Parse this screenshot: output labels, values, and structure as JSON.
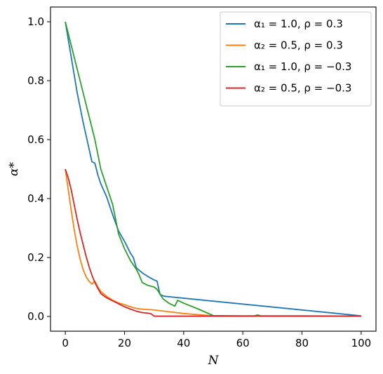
{
  "chart_data": {
    "type": "line",
    "title": "",
    "xlabel": "N",
    "ylabel": "α*",
    "xlim": [
      -5,
      105
    ],
    "ylim": [
      -0.05,
      1.05
    ],
    "xticks": [
      0,
      20,
      40,
      60,
      80,
      100
    ],
    "xtick_labels": [
      "0",
      "20",
      "40",
      "60",
      "80",
      "100"
    ],
    "yticks": [
      0.0,
      0.2,
      0.4,
      0.6,
      0.8,
      1.0
    ],
    "ytick_labels": [
      "0.0",
      "0.2",
      "0.4",
      "0.6",
      "0.8",
      "1.0"
    ],
    "grid": false,
    "legend_position": "top-right",
    "series": [
      {
        "name": "α₁ = 1.0, ρ = 0.3",
        "color": "#1f77b4",
        "x": [
          0,
          2,
          4,
          6,
          8,
          9,
          10,
          11,
          12,
          14,
          16,
          18,
          20,
          22,
          23,
          24,
          26,
          28,
          30,
          31,
          32,
          33,
          34,
          100
        ],
        "y": [
          1.0,
          0.88,
          0.76,
          0.66,
          0.57,
          0.525,
          0.52,
          0.48,
          0.45,
          0.405,
          0.345,
          0.29,
          0.255,
          0.215,
          0.2,
          0.165,
          0.148,
          0.135,
          0.124,
          0.12,
          0.075,
          0.07,
          0.068,
          0.002
        ]
      },
      {
        "name": "α₂ = 0.5, ρ = 0.3",
        "color": "#ff7f0e",
        "x": [
          0,
          1,
          2,
          3,
          4,
          5,
          6,
          7,
          8,
          9,
          10,
          11,
          12,
          14,
          16,
          18,
          20,
          22,
          24,
          26,
          30,
          40,
          50,
          60,
          70,
          80,
          100
        ],
        "y": [
          0.5,
          0.43,
          0.36,
          0.295,
          0.24,
          0.195,
          0.16,
          0.135,
          0.12,
          0.11,
          0.12,
          0.1,
          0.085,
          0.068,
          0.055,
          0.046,
          0.04,
          0.033,
          0.027,
          0.025,
          0.022,
          0.01,
          0.002,
          0.001,
          0.001,
          0.001,
          0.001
        ]
      },
      {
        "name": "α₁ = 1.0, ρ = −0.3",
        "color": "#2ca02c",
        "x": [
          0,
          2,
          4,
          6,
          8,
          10,
          11,
          12,
          14,
          16,
          17,
          18,
          20,
          22,
          24,
          25,
          26,
          28,
          30,
          31,
          33,
          35,
          37,
          38,
          40,
          45,
          50,
          60,
          64,
          65,
          66,
          70,
          80,
          100
        ],
        "y": [
          1.0,
          0.92,
          0.84,
          0.76,
          0.68,
          0.6,
          0.55,
          0.5,
          0.44,
          0.38,
          0.33,
          0.28,
          0.23,
          0.19,
          0.16,
          0.14,
          0.115,
          0.105,
          0.1,
          0.092,
          0.06,
          0.045,
          0.035,
          0.055,
          0.045,
          0.025,
          0.003,
          0.002,
          0.002,
          0.005,
          0.002,
          0.002,
          0.002,
          0.001
        ]
      },
      {
        "name": "α₂ = 0.5, ρ = −0.3",
        "color": "#d62728",
        "x": [
          0,
          1,
          2,
          3,
          4,
          5,
          6,
          7,
          8,
          9,
          10,
          11,
          12,
          13,
          14,
          16,
          18,
          20,
          22,
          24,
          26,
          28,
          29,
          30,
          35,
          40,
          50,
          60,
          64,
          65,
          66,
          70,
          80,
          100
        ],
        "y": [
          0.5,
          0.47,
          0.43,
          0.38,
          0.33,
          0.285,
          0.245,
          0.205,
          0.17,
          0.14,
          0.115,
          0.095,
          0.078,
          0.07,
          0.063,
          0.053,
          0.043,
          0.033,
          0.025,
          0.018,
          0.013,
          0.011,
          0.009,
          0.001,
          0.001,
          0.001,
          0.001,
          0.001,
          0.001,
          0.003,
          0.001,
          0.001,
          0.001,
          0.001
        ]
      }
    ]
  }
}
